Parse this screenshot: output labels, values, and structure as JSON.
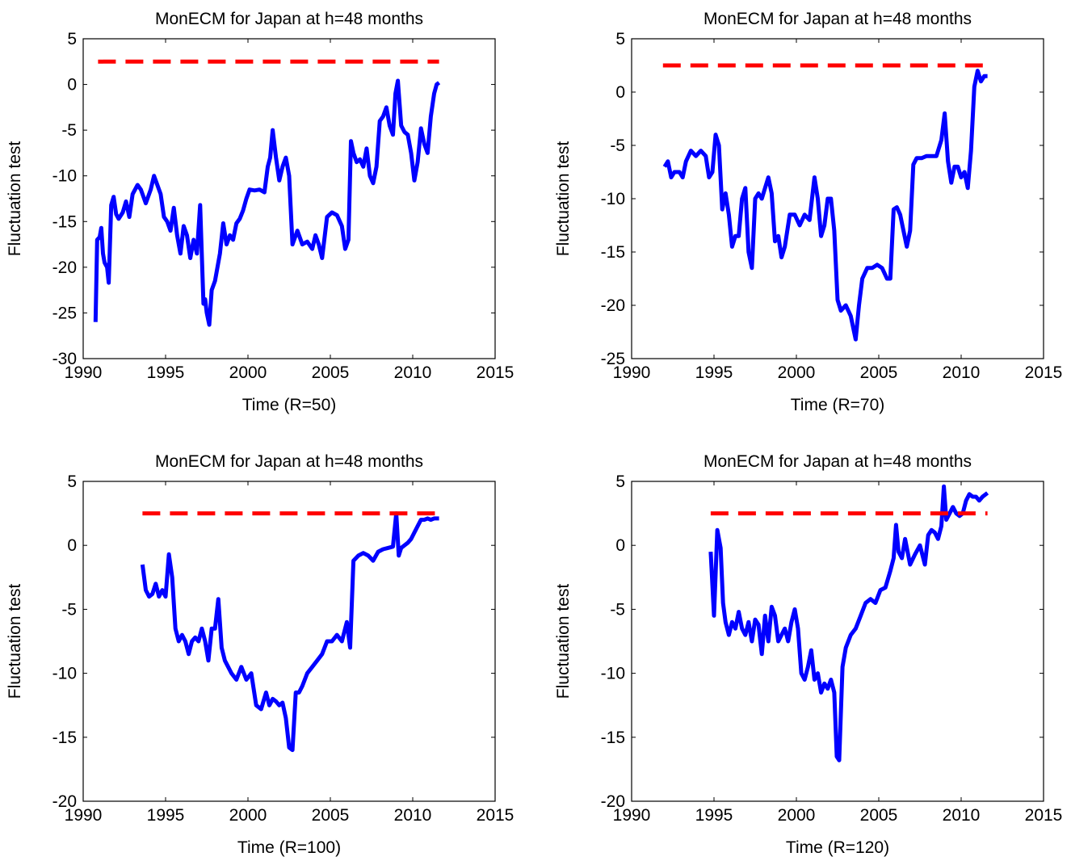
{
  "colors": {
    "series": "#0000ff",
    "threshold": "#ff0000",
    "axis": "#000000",
    "background": "#ffffff"
  },
  "chart_data": [
    {
      "type": "line",
      "title": "MonECM for Japan at h=48 months",
      "xlabel": "Time (R=50)",
      "ylabel": "Fluctuation test",
      "xlim": [
        1990,
        2015
      ],
      "ylim": [
        -30,
        5
      ],
      "xticks": [
        "1990",
        "1995",
        "2000",
        "2005",
        "2010",
        "2015"
      ],
      "yticks": [
        "-30",
        "-25",
        "-20",
        "-15",
        "-10",
        "-5",
        "0",
        "5"
      ],
      "grid": false,
      "series": [
        {
          "style": "solid",
          "color": "#0000ff",
          "x": [
            1990.75,
            1990.85,
            1991.0,
            1991.1,
            1991.2,
            1991.3,
            1991.45,
            1991.55,
            1991.7,
            1991.85,
            1992.0,
            1992.15,
            1992.4,
            1992.6,
            1992.8,
            1993.0,
            1993.3,
            1993.5,
            1993.8,
            1994.1,
            1994.3,
            1994.5,
            1994.7,
            1994.9,
            1995.1,
            1995.3,
            1995.5,
            1995.7,
            1995.9,
            1996.1,
            1996.3,
            1996.5,
            1996.7,
            1996.9,
            1997.1,
            1997.3,
            1997.4,
            1997.5,
            1997.65,
            1997.8,
            1998.0,
            1998.3,
            1998.5,
            1998.7,
            1998.9,
            1999.1,
            1999.3,
            1999.5,
            1999.7,
            1999.9,
            2000.1,
            2000.4,
            2000.7,
            2001.0,
            2001.2,
            2001.35,
            2001.5,
            2001.7,
            2001.9,
            2002.1,
            2002.3,
            2002.5,
            2002.7,
            2003.0,
            2003.3,
            2003.6,
            2003.9,
            2004.1,
            2004.3,
            2004.5,
            2004.8,
            2005.1,
            2005.4,
            2005.7,
            2005.9,
            2006.1,
            2006.25,
            2006.4,
            2006.6,
            2006.8,
            2007.0,
            2007.2,
            2007.4,
            2007.6,
            2007.8,
            2008.0,
            2008.2,
            2008.4,
            2008.6,
            2008.8,
            2008.95,
            2009.1,
            2009.3,
            2009.5,
            2009.7,
            2009.9,
            2010.1,
            2010.3,
            2010.5,
            2010.7,
            2010.9,
            2011.1,
            2011.3,
            2011.45,
            2011.6
          ],
          "y": [
            -26,
            -17,
            -16.7,
            -15.7,
            -18.5,
            -19.5,
            -20,
            -21.7,
            -13.2,
            -12.3,
            -14.2,
            -14.7,
            -14,
            -12.8,
            -14.5,
            -12,
            -11,
            -11.5,
            -13,
            -11.5,
            -10,
            -11,
            -12,
            -14.5,
            -15,
            -16,
            -13.5,
            -16.5,
            -18.5,
            -15.5,
            -16.5,
            -19,
            -17,
            -18.5,
            -13.2,
            -24,
            -23.5,
            -25,
            -26.3,
            -22.5,
            -21.5,
            -18.5,
            -15.2,
            -17.5,
            -16.5,
            -17,
            -15.2,
            -14.7,
            -13.8,
            -12.5,
            -11.5,
            -11.6,
            -11.5,
            -11.8,
            -9,
            -8,
            -5,
            -8,
            -10.5,
            -9,
            -8,
            -10,
            -17.5,
            -16,
            -17.5,
            -17.2,
            -18,
            -16.5,
            -17.5,
            -19,
            -14.5,
            -14,
            -14.3,
            -15.5,
            -18,
            -17,
            -6.2,
            -7.5,
            -8.5,
            -8.2,
            -9,
            -7,
            -10,
            -10.8,
            -9,
            -4,
            -3.5,
            -2.5,
            -4.5,
            -5.5,
            -1,
            0.4,
            -4.5,
            -5.2,
            -5.5,
            -7.5,
            -10.5,
            -8.5,
            -4.8,
            -6.5,
            -7.5,
            -3.5,
            -1,
            0,
            0.2
          ]
        },
        {
          "style": "dashed",
          "color": "#ff0000",
          "x": [
            1990.9,
            2011.6
          ],
          "y": [
            2.5,
            2.5
          ]
        }
      ]
    },
    {
      "type": "line",
      "title": "MonECM for Japan at h=48 months",
      "xlabel": "Time (R=70)",
      "ylabel": "Fluctuation test",
      "xlim": [
        1990,
        2015
      ],
      "ylim": [
        -25,
        5
      ],
      "xticks": [
        "1990",
        "1995",
        "2000",
        "2005",
        "2010",
        "2015"
      ],
      "yticks": [
        "-25",
        "-20",
        "-15",
        "-10",
        "-5",
        "0",
        "5"
      ],
      "grid": false,
      "series": [
        {
          "style": "solid",
          "color": "#0000ff",
          "x": [
            1992.0,
            1992.2,
            1992.4,
            1992.6,
            1992.9,
            1993.1,
            1993.3,
            1993.6,
            1993.9,
            1994.2,
            1994.5,
            1994.7,
            1994.9,
            1995.1,
            1995.3,
            1995.5,
            1995.7,
            1995.9,
            1996.1,
            1996.3,
            1996.5,
            1996.7,
            1996.9,
            1997.1,
            1997.3,
            1997.5,
            1997.7,
            1997.9,
            1998.1,
            1998.3,
            1998.5,
            1998.7,
            1998.9,
            1999.1,
            1999.3,
            1999.6,
            1999.9,
            2000.2,
            2000.5,
            2000.8,
            2001.1,
            2001.3,
            2001.5,
            2001.7,
            2001.9,
            2002.1,
            2002.3,
            2002.5,
            2002.7,
            2003.0,
            2003.3,
            2003.6,
            2003.8,
            2004.0,
            2004.3,
            2004.6,
            2004.9,
            2005.2,
            2005.5,
            2005.7,
            2005.9,
            2006.1,
            2006.3,
            2006.5,
            2006.7,
            2006.9,
            2007.1,
            2007.3,
            2007.6,
            2007.9,
            2008.2,
            2008.5,
            2008.8,
            2009.0,
            2009.2,
            2009.4,
            2009.6,
            2009.8,
            2010.0,
            2010.2,
            2010.4,
            2010.6,
            2010.8,
            2011.0,
            2011.2,
            2011.4,
            2011.6
          ],
          "y": [
            -7,
            -6.5,
            -8,
            -7.5,
            -7.5,
            -8,
            -6.5,
            -5.5,
            -6,
            -5.5,
            -6,
            -8,
            -7.5,
            -4,
            -5,
            -11,
            -9.5,
            -11.5,
            -14.5,
            -13.5,
            -13.5,
            -10,
            -9,
            -15,
            -16.5,
            -10,
            -9.5,
            -10,
            -9,
            -8,
            -9.5,
            -14,
            -13.5,
            -15.5,
            -14.5,
            -11.5,
            -11.5,
            -12.5,
            -11.5,
            -12,
            -8,
            -10,
            -13.5,
            -12.5,
            -10,
            -10,
            -13,
            -19.5,
            -20.5,
            -20,
            -21,
            -23.2,
            -20,
            -17.5,
            -16.5,
            -16.5,
            -16.2,
            -16.5,
            -17.5,
            -17.5,
            -11,
            -10.8,
            -11.5,
            -13,
            -14.5,
            -13,
            -6.8,
            -6.2,
            -6.2,
            -6,
            -6,
            -6,
            -4.5,
            -2,
            -6.5,
            -8.5,
            -7,
            -7,
            -8,
            -7.5,
            -9,
            -5.5,
            0.5,
            2,
            1,
            1.5,
            1.5
          ]
        },
        {
          "style": "dashed",
          "color": "#ff0000",
          "x": [
            1991.9,
            2011.6
          ],
          "y": [
            2.5,
            2.5
          ]
        }
      ]
    },
    {
      "type": "line",
      "title": "MonECM for Japan at h=48 months",
      "xlabel": "Time (R=100)",
      "ylabel": "Fluctuation test",
      "xlim": [
        1990,
        2015
      ],
      "ylim": [
        -20,
        5
      ],
      "xticks": [
        "1990",
        "1995",
        "2000",
        "2005",
        "2010",
        "2015"
      ],
      "yticks": [
        "-20",
        "-15",
        "-10",
        "-5",
        "0",
        "5"
      ],
      "grid": false,
      "series": [
        {
          "style": "solid",
          "color": "#0000ff",
          "x": [
            1993.6,
            1993.8,
            1994.0,
            1994.2,
            1994.4,
            1994.6,
            1994.8,
            1995.0,
            1995.2,
            1995.4,
            1995.6,
            1995.8,
            1996.0,
            1996.2,
            1996.4,
            1996.6,
            1996.8,
            1997.0,
            1997.2,
            1997.4,
            1997.6,
            1997.8,
            1998.0,
            1998.2,
            1998.4,
            1998.6,
            1998.8,
            1999.0,
            1999.3,
            1999.6,
            1999.9,
            2000.2,
            2000.5,
            2000.8,
            2001.1,
            2001.3,
            2001.5,
            2001.7,
            2001.9,
            2002.1,
            2002.3,
            2002.5,
            2002.7,
            2002.9,
            2003.1,
            2003.3,
            2003.6,
            2003.9,
            2004.2,
            2004.5,
            2004.8,
            2005.1,
            2005.4,
            2005.7,
            2006.0,
            2006.2,
            2006.4,
            2006.7,
            2007.0,
            2007.3,
            2007.6,
            2007.9,
            2008.2,
            2008.5,
            2008.8,
            2009.0,
            2009.15,
            2009.3,
            2009.5,
            2009.7,
            2009.9,
            2010.1,
            2010.3,
            2010.5,
            2010.7,
            2010.9,
            2011.1,
            2011.3,
            2011.6
          ],
          "y": [
            -1.5,
            -3.5,
            -4,
            -3.8,
            -3,
            -4,
            -3.5,
            -4,
            -0.7,
            -2.5,
            -6.5,
            -7.5,
            -7,
            -7.5,
            -8.5,
            -7.5,
            -7.2,
            -7.5,
            -6.5,
            -7.5,
            -9,
            -6.5,
            -6.5,
            -4.2,
            -8,
            -9,
            -9.5,
            -10,
            -10.5,
            -9.5,
            -10.5,
            -10,
            -12.5,
            -12.8,
            -11.5,
            -12.5,
            -12,
            -12.2,
            -12.5,
            -12.3,
            -13.5,
            -15.8,
            -16,
            -11.5,
            -11.5,
            -11,
            -10,
            -9.5,
            -9,
            -8.5,
            -7.5,
            -7.5,
            -7,
            -7.5,
            -6,
            -8,
            -1.2,
            -0.8,
            -0.6,
            -0.8,
            -1.2,
            -0.5,
            -0.3,
            -0.2,
            -0.1,
            2.5,
            -0.8,
            -0.2,
            0,
            0.2,
            0.5,
            1,
            1.5,
            2,
            2,
            2.1,
            2,
            2.1,
            2.1
          ]
        },
        {
          "style": "dashed",
          "color": "#ff0000",
          "x": [
            1993.6,
            2011.6
          ],
          "y": [
            2.5,
            2.5
          ]
        }
      ]
    },
    {
      "type": "line",
      "title": "MonECM for Japan at h=48 months",
      "xlabel": "Time (R=120)",
      "ylabel": "Fluctuation test",
      "xlim": [
        1990,
        2015
      ],
      "ylim": [
        -20,
        5
      ],
      "xticks": [
        "1990",
        "1995",
        "2000",
        "2005",
        "2010",
        "2015"
      ],
      "yticks": [
        "-20",
        "-15",
        "-10",
        "-5",
        "0",
        "5"
      ],
      "grid": false,
      "series": [
        {
          "style": "solid",
          "color": "#0000ff",
          "x": [
            1994.8,
            1995.0,
            1995.2,
            1995.4,
            1995.55,
            1995.7,
            1995.9,
            1996.1,
            1996.3,
            1996.5,
            1996.7,
            1996.9,
            1997.1,
            1997.3,
            1997.5,
            1997.7,
            1997.9,
            1998.1,
            1998.3,
            1998.5,
            1998.7,
            1998.9,
            1999.1,
            1999.3,
            1999.5,
            1999.7,
            1999.9,
            2000.1,
            2000.3,
            2000.5,
            2000.7,
            2000.9,
            2001.1,
            2001.3,
            2001.5,
            2001.7,
            2001.9,
            2002.1,
            2002.3,
            2002.45,
            2002.6,
            2002.8,
            2003.0,
            2003.3,
            2003.6,
            2003.9,
            2004.2,
            2004.5,
            2004.8,
            2005.1,
            2005.4,
            2005.7,
            2005.9,
            2006.05,
            2006.2,
            2006.4,
            2006.6,
            2006.9,
            2007.2,
            2007.5,
            2007.8,
            2008.0,
            2008.2,
            2008.4,
            2008.6,
            2008.8,
            2008.95,
            2009.1,
            2009.3,
            2009.5,
            2009.7,
            2009.9,
            2010.1,
            2010.3,
            2010.5,
            2010.7,
            2010.9,
            2011.1,
            2011.3,
            2011.6
          ],
          "y": [
            -0.5,
            -5.5,
            1.2,
            -0.2,
            -4.5,
            -6,
            -7,
            -6,
            -6.5,
            -5.2,
            -6.5,
            -7,
            -6,
            -7.5,
            -5.8,
            -6.2,
            -8.5,
            -5.5,
            -7.5,
            -4.8,
            -5.5,
            -7.5,
            -7,
            -6.5,
            -7.5,
            -6,
            -5,
            -6.5,
            -10,
            -10.5,
            -9.5,
            -8.2,
            -10.5,
            -10,
            -11.5,
            -10.8,
            -11.2,
            -10.5,
            -11.5,
            -16.5,
            -16.8,
            -9.5,
            -8,
            -7,
            -6.5,
            -5.5,
            -4.5,
            -4.2,
            -4.5,
            -3.5,
            -3.3,
            -2,
            -1,
            1.6,
            -0.5,
            -1,
            0.5,
            -1.5,
            -0.7,
            0,
            -1.5,
            0.8,
            1.2,
            1,
            0.5,
            1.5,
            4.6,
            2,
            2.5,
            3,
            2.5,
            2.3,
            2.5,
            3.5,
            4,
            3.8,
            3.8,
            3.5,
            3.8,
            4.1
          ]
        },
        {
          "style": "dashed",
          "color": "#ff0000",
          "x": [
            1994.8,
            2011.6
          ],
          "y": [
            2.5,
            2.5
          ]
        }
      ]
    }
  ]
}
